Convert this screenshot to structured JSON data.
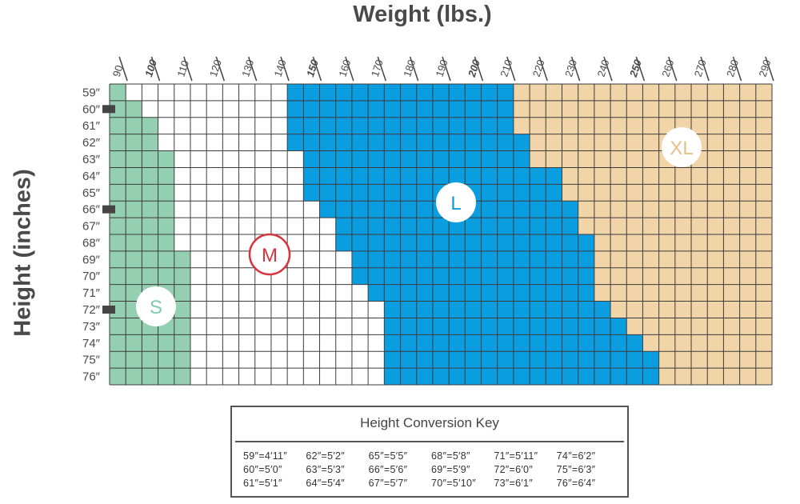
{
  "chart_data": {
    "type": "heatmap",
    "title": "Weight (lbs.)",
    "xlabel": "Weight (lbs.)",
    "ylabel": "Height (inches)",
    "x_ticks": [
      "90",
      "100",
      "110",
      "120",
      "130",
      "140",
      "150",
      "160",
      "170",
      "180",
      "190",
      "200",
      "210",
      "220",
      "230",
      "240",
      "250",
      "260",
      "270",
      "280",
      "290"
    ],
    "x_ticks_bold": [
      "100",
      "150",
      "200",
      "250"
    ],
    "y_ticks": [
      "59″",
      "60″",
      "61″",
      "62″",
      "63″",
      "64″",
      "65″",
      "66″",
      "67″",
      "68″",
      "69″",
      "70″",
      "71″",
      "72″",
      "73″",
      "74″",
      "75″",
      "76″"
    ],
    "y_tick_markers": [
      "60″",
      "66″",
      "72″"
    ],
    "sizes": [
      {
        "label": "S",
        "color": "#93cfb0",
        "label_color": "#7fcbae"
      },
      {
        "label": "M",
        "color": "#ffffff",
        "label_color": "#d7333f"
      },
      {
        "label": "L",
        "color": "#0a9de0",
        "label_color": "#0a9de0"
      },
      {
        "label": "XL",
        "color": "#f1d4a7",
        "label_color": "#e8bf86"
      }
    ],
    "max_weight_by_height": {
      "S": [
        "90",
        "95",
        "100",
        "100",
        "105",
        "105",
        "105",
        "105",
        "105",
        "105",
        "110",
        "110",
        "110",
        "110",
        "110",
        "110",
        "110",
        "110"
      ],
      "M": [
        "140",
        "140",
        "140",
        "140",
        "145",
        "145",
        "145",
        "150",
        "155",
        "155",
        "160",
        "160",
        "165",
        "170",
        "170",
        "170",
        "170",
        "170"
      ],
      "L": [
        "210",
        "210",
        "210",
        "215",
        "215",
        "225",
        "225",
        "230",
        "230",
        "235",
        "235",
        "235",
        "235",
        "240",
        "245",
        "250",
        "255",
        "255"
      ],
      "XL": [
        "290",
        "290",
        "290",
        "290",
        "290",
        "290",
        "290",
        "290",
        "290",
        "290",
        "290",
        "290",
        "290",
        "290",
        "290",
        "290",
        "290",
        "290"
      ]
    }
  },
  "conversion_key": {
    "title": "Height Conversion Key",
    "entries": [
      "59″=4′11″",
      "60″=5′0″",
      "61″=5′1″",
      "62″=5′2″",
      "63″=5′3″",
      "64″=5′4″",
      "65″=5′5″",
      "66″=5′6″",
      "67″=5′7″",
      "68″=5′8″",
      "69″=5′9″",
      "70″=5′10″",
      "71″=5′11″",
      "72″=6′0″",
      "73″=6′1″",
      "74″=6′2″",
      "75″=6′3″",
      "76″=6′4″"
    ]
  }
}
